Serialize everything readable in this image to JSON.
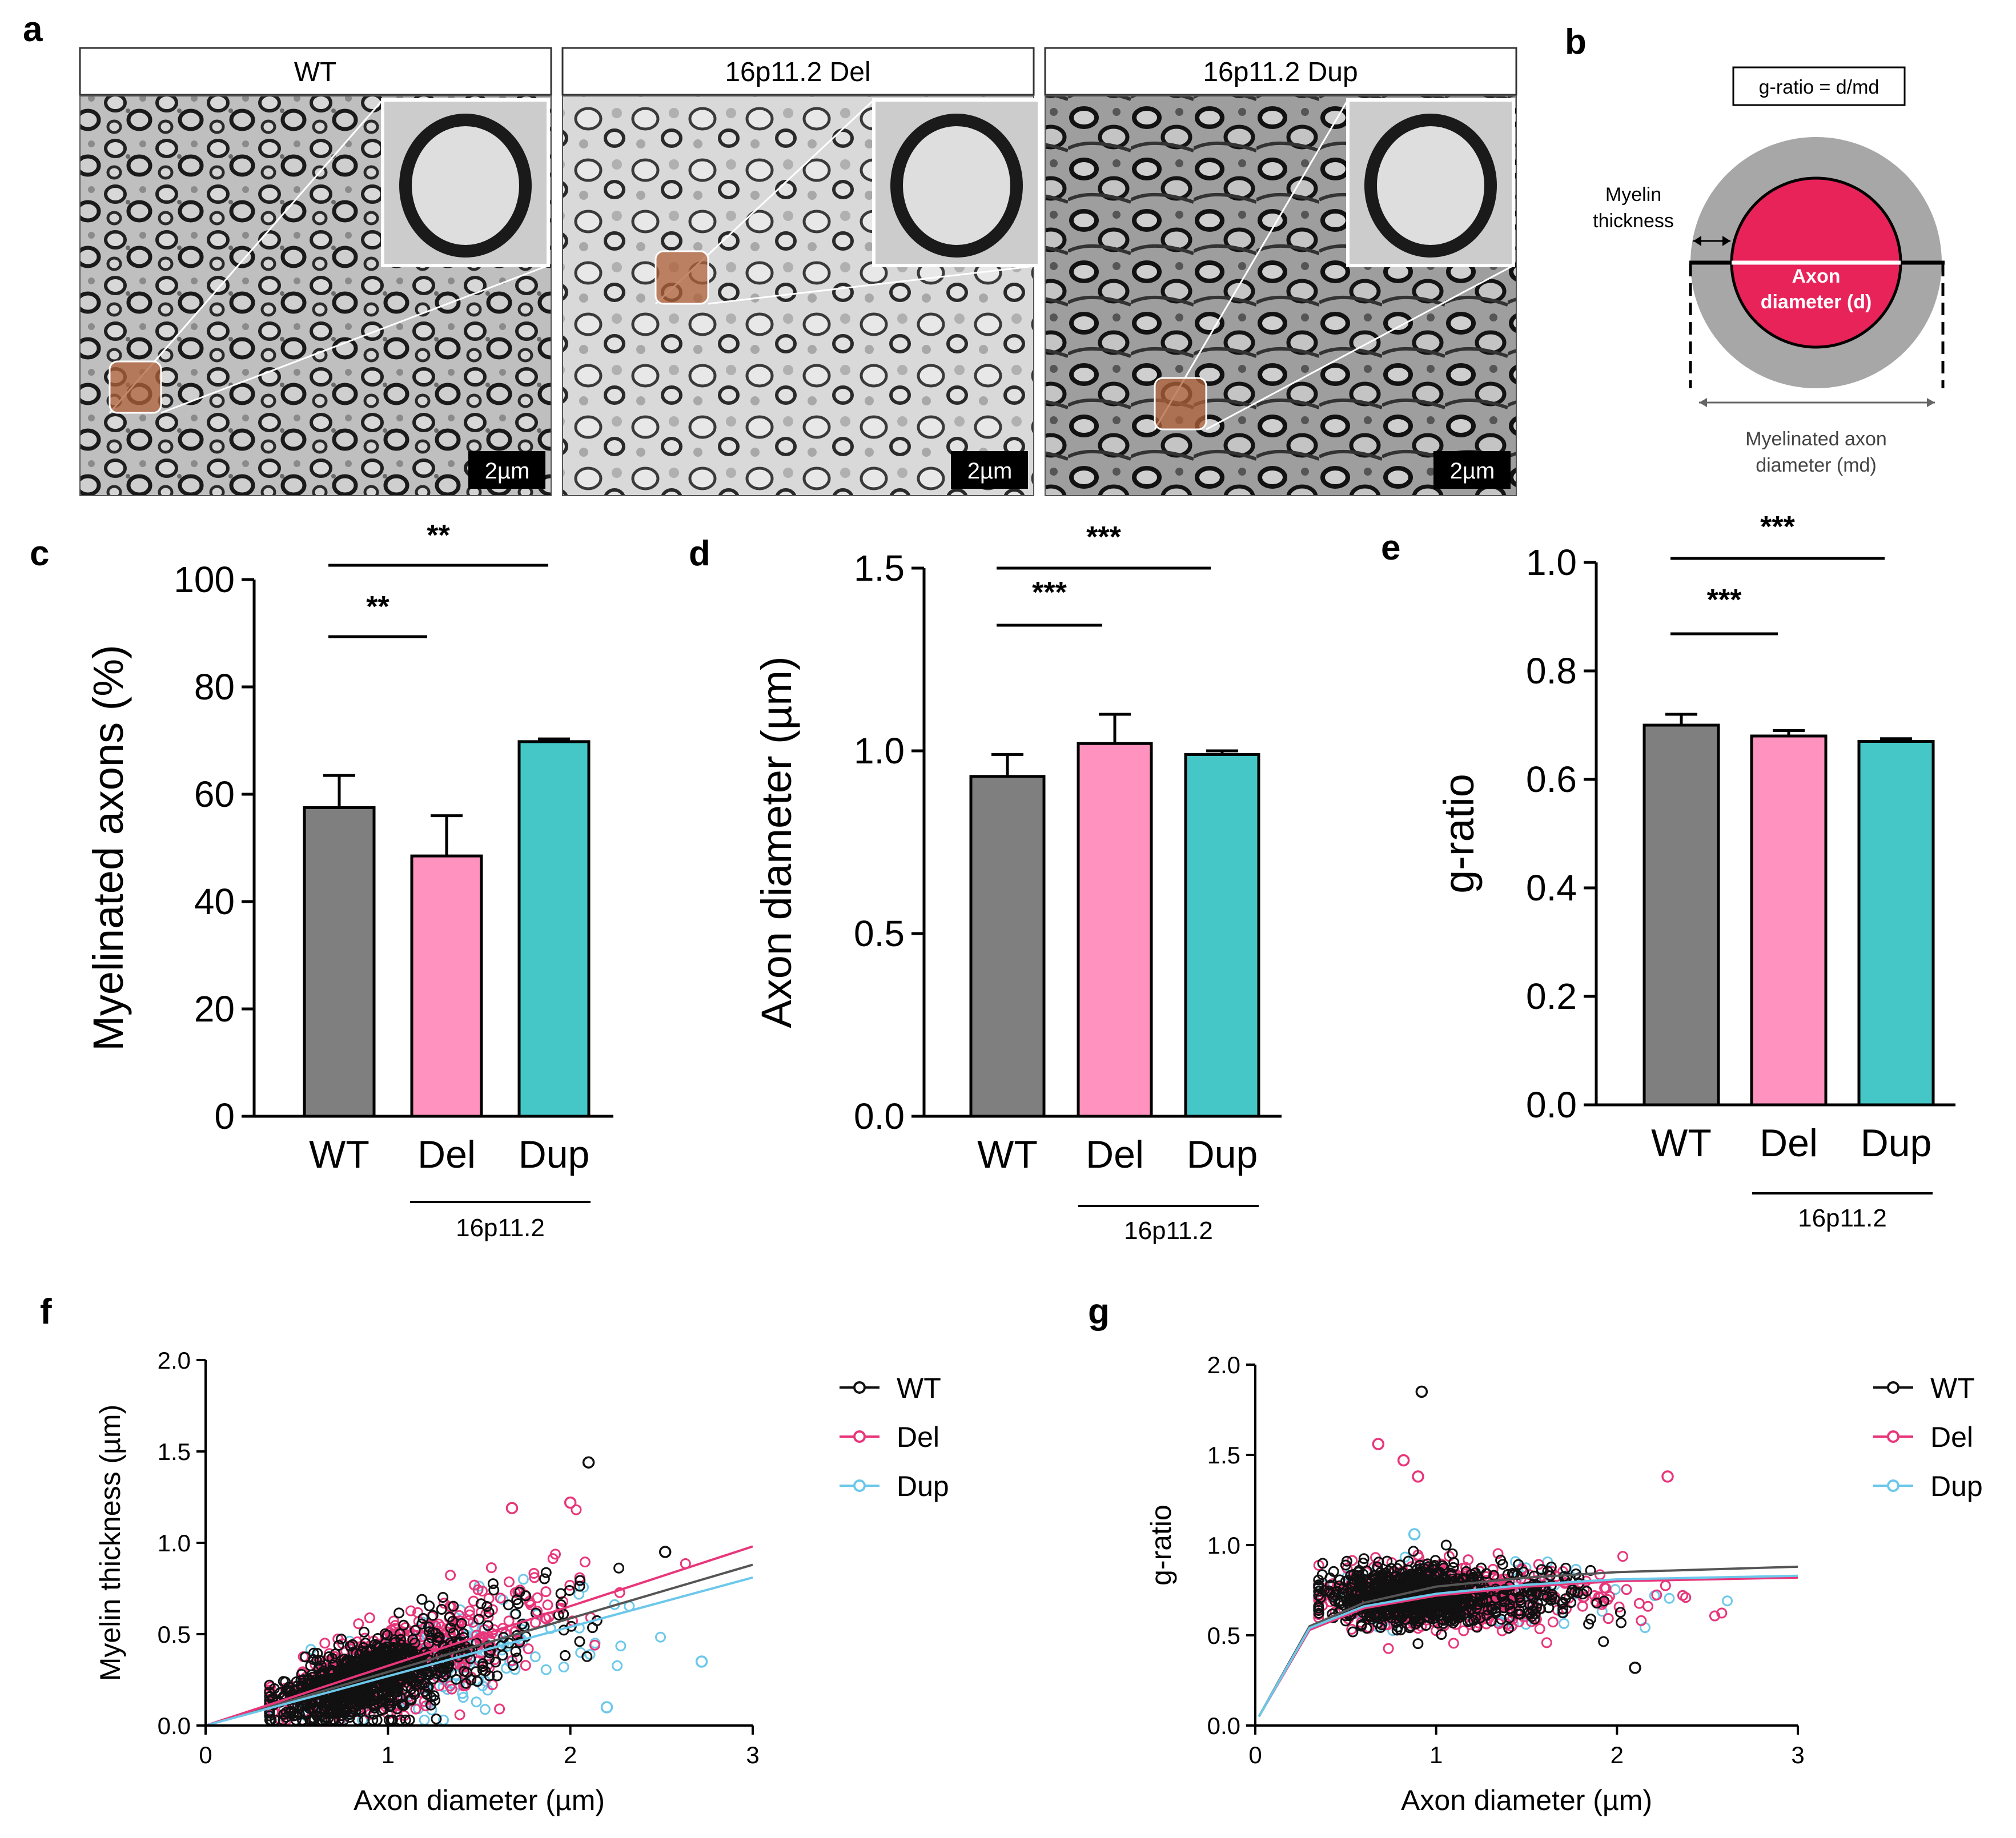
{
  "panel_labels": {
    "a": "a",
    "b": "b",
    "c": "c",
    "d": "d",
    "e": "e",
    "f": "f",
    "g": "g"
  },
  "panel_a": {
    "titles": [
      "WT",
      "16p11.2 Del",
      "16p11.2 Dup"
    ],
    "scalebar": "2µm"
  },
  "panel_b": {
    "formula": "g-ratio = d/md",
    "myelin_label_1": "Myelin",
    "myelin_label_2": "thickness",
    "axon_label_1": "Axon",
    "axon_label_2": "diameter (d)",
    "md_label_1": "Myelinated axon",
    "md_label_2": "diameter (md)"
  },
  "colors": {
    "wt": "#7f7f7f",
    "del": "#ff92be",
    "dup": "#45c7c7",
    "axon": "#e8235a",
    "myelin": "#a7a7a7",
    "scatter_wt": "#111111",
    "scatter_del": "#e8367a",
    "scatter_dup": "#6cc8ea"
  },
  "chart_data": [
    {
      "id": "c",
      "type": "bar",
      "categories": [
        "WT",
        "Del",
        "Dup"
      ],
      "values": [
        57.5,
        48.5,
        69.8
      ],
      "errors": [
        6.0,
        7.5,
        0.5
      ],
      "ylabel": "Myelinated axons (%)",
      "ylim": [
        0,
        100
      ],
      "yticks": [
        "0",
        "20",
        "40",
        "60",
        "80",
        "100"
      ],
      "group_label": "16p11.2",
      "significance": [
        {
          "from": "WT",
          "to": "Del",
          "label": "**"
        },
        {
          "from": "WT",
          "to": "Dup",
          "label": "**"
        }
      ]
    },
    {
      "id": "d",
      "type": "bar",
      "categories": [
        "WT",
        "Del",
        "Dup"
      ],
      "values": [
        0.93,
        1.02,
        0.99
      ],
      "errors": [
        0.06,
        0.08,
        0.01
      ],
      "ylabel": "Axon diameter (µm)",
      "ylim": [
        0,
        1.5
      ],
      "yticks": [
        "0.0",
        "0.5",
        "1.0",
        "1.5"
      ],
      "group_label": "16p11.2",
      "significance": [
        {
          "from": "WT",
          "to": "Del",
          "label": "***"
        },
        {
          "from": "WT",
          "to": "Dup",
          "label": "***"
        }
      ]
    },
    {
      "id": "e",
      "type": "bar",
      "categories": [
        "WT",
        "Del",
        "Dup"
      ],
      "values": [
        0.7,
        0.68,
        0.67
      ],
      "errors": [
        0.02,
        0.01,
        0.005
      ],
      "ylabel": "g-ratio",
      "ylim": [
        0,
        1.0
      ],
      "yticks": [
        "0.0",
        "0.2",
        "0.4",
        "0.6",
        "0.8",
        "1.0"
      ],
      "group_label": "16p11.2",
      "significance": [
        {
          "from": "WT",
          "to": "Del",
          "label": "***"
        },
        {
          "from": "WT",
          "to": "Dup",
          "label": "***"
        }
      ]
    },
    {
      "id": "f",
      "type": "scatter",
      "xlabel": "Axon diameter (µm)",
      "ylabel": "Myelin thickness (µm)",
      "xlim": [
        0,
        3
      ],
      "ylim": [
        0,
        2.0
      ],
      "xticks": [
        "0",
        "1",
        "2",
        "3"
      ],
      "yticks": [
        "0.0",
        "0.5",
        "1.0",
        "1.5",
        "2.0"
      ],
      "legend": [
        "WT",
        "Del",
        "Dup"
      ],
      "fits": [
        {
          "name": "WT",
          "points": [
            [
              0,
              0
            ],
            [
              3,
              0.88
            ]
          ]
        },
        {
          "name": "Del",
          "points": [
            [
              0,
              0
            ],
            [
              3,
              0.98
            ]
          ]
        },
        {
          "name": "Dup",
          "points": [
            [
              0,
              0
            ],
            [
              3,
              0.81
            ]
          ]
        }
      ],
      "outliers": [
        {
          "series": "WT",
          "x": 2.1,
          "y": 1.44
        },
        {
          "series": "WT",
          "x": 2.52,
          "y": 0.95
        },
        {
          "series": "Del",
          "x": 2.0,
          "y": 1.22
        },
        {
          "series": "Del",
          "x": 1.68,
          "y": 1.19
        },
        {
          "series": "Dup",
          "x": 2.72,
          "y": 0.35
        },
        {
          "series": "Dup",
          "x": 2.2,
          "y": 0.1
        }
      ]
    },
    {
      "id": "g",
      "type": "scatter",
      "xlabel": "Axon diameter (µm)",
      "ylabel": "g-ratio",
      "xlim": [
        0,
        3
      ],
      "ylim": [
        0,
        2.0
      ],
      "xticks": [
        "0",
        "1",
        "2",
        "3"
      ],
      "yticks": [
        "0.0",
        "0.5",
        "1.0",
        "1.5",
        "2.0"
      ],
      "legend": [
        "WT",
        "Del",
        "Dup"
      ],
      "fits": [
        {
          "name": "WT",
          "points": [
            [
              0.02,
              0.05
            ],
            [
              0.3,
              0.55
            ],
            [
              0.6,
              0.68
            ],
            [
              1.0,
              0.77
            ],
            [
              1.5,
              0.82
            ],
            [
              2.0,
              0.85
            ],
            [
              3.0,
              0.88
            ]
          ]
        },
        {
          "name": "Del",
          "points": [
            [
              0.02,
              0.05
            ],
            [
              0.3,
              0.53
            ],
            [
              0.6,
              0.65
            ],
            [
              1.0,
              0.72
            ],
            [
              1.5,
              0.77
            ],
            [
              2.0,
              0.8
            ],
            [
              3.0,
              0.82
            ]
          ]
        },
        {
          "name": "Dup",
          "points": [
            [
              0.02,
              0.05
            ],
            [
              0.3,
              0.54
            ],
            [
              0.6,
              0.66
            ],
            [
              1.0,
              0.73
            ],
            [
              1.5,
              0.78
            ],
            [
              2.0,
              0.81
            ],
            [
              3.0,
              0.83
            ]
          ]
        }
      ],
      "outliers": [
        {
          "series": "WT",
          "x": 0.92,
          "y": 1.85
        },
        {
          "series": "Del",
          "x": 0.68,
          "y": 1.56
        },
        {
          "series": "Del",
          "x": 0.82,
          "y": 1.47
        },
        {
          "series": "Del",
          "x": 0.9,
          "y": 1.38
        },
        {
          "series": "Del",
          "x": 2.28,
          "y": 1.38
        },
        {
          "series": "Dup",
          "x": 0.88,
          "y": 1.06
        },
        {
          "series": "WT",
          "x": 2.1,
          "y": 0.32
        }
      ]
    }
  ]
}
